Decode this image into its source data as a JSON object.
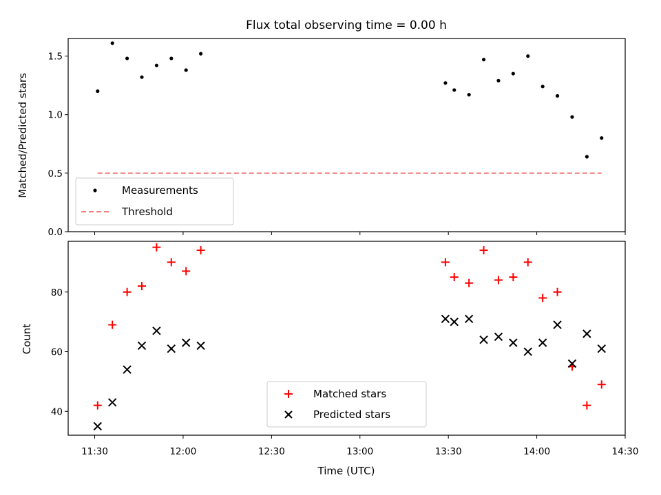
{
  "chart_data": [
    {
      "type": "scatter",
      "title": "Flux total observing time = 0.00 h",
      "xlabel": "",
      "ylabel": "Matched/Predicted stars",
      "xlim": [
        "11:21",
        "14:30"
      ],
      "ylim": [
        0.0,
        1.65
      ],
      "yticks": [
        0.0,
        0.5,
        1.0,
        1.5
      ],
      "ytick_labels": [
        "0.0",
        "0.5",
        "1.0",
        "1.5"
      ],
      "legend_position": "lower-left",
      "series": [
        {
          "name": "Measurements",
          "kind": "scatter",
          "marker": "dot",
          "color": "#000000",
          "x": [
            "11:31",
            "11:36",
            "11:41",
            "11:46",
            "11:51",
            "11:56",
            "12:01",
            "12:06",
            "13:29",
            "13:32",
            "13:37",
            "13:42",
            "13:47",
            "13:52",
            "13:57",
            "14:02",
            "14:07",
            "14:12",
            "14:17",
            "14:22"
          ],
          "y": [
            1.2,
            1.61,
            1.48,
            1.32,
            1.42,
            1.48,
            1.38,
            1.52,
            1.27,
            1.21,
            1.17,
            1.47,
            1.29,
            1.35,
            1.5,
            1.24,
            1.16,
            0.98,
            0.64,
            0.8
          ]
        },
        {
          "name": "Threshold",
          "kind": "line",
          "style": "dashed",
          "color": "#f08080",
          "x": [
            "11:31",
            "14:22"
          ],
          "y": [
            0.5,
            0.5
          ]
        }
      ]
    },
    {
      "type": "scatter",
      "title": "",
      "xlabel": "Time (UTC)",
      "ylabel": "Count",
      "xlim": [
        "11:21",
        "14:30"
      ],
      "ylim": [
        32,
        97
      ],
      "yticks": [
        40,
        60,
        80
      ],
      "ytick_labels": [
        "40",
        "60",
        "80"
      ],
      "xticks": [
        "11:30",
        "12:00",
        "12:30",
        "13:00",
        "13:30",
        "14:00",
        "14:30"
      ],
      "legend_position": "lower-center",
      "series": [
        {
          "name": "Matched stars",
          "kind": "scatter",
          "marker": "plus",
          "color": "#ff0000",
          "x": [
            "11:31",
            "11:36",
            "11:41",
            "11:46",
            "11:51",
            "11:56",
            "12:01",
            "12:06",
            "13:29",
            "13:32",
            "13:37",
            "13:42",
            "13:47",
            "13:52",
            "13:57",
            "14:02",
            "14:07",
            "14:12",
            "14:17",
            "14:22"
          ],
          "y": [
            42,
            69,
            80,
            82,
            95,
            90,
            87,
            94,
            90,
            85,
            83,
            94,
            84,
            85,
            90,
            78,
            80,
            55,
            42,
            49
          ]
        },
        {
          "name": "Predicted stars",
          "kind": "scatter",
          "marker": "x",
          "color": "#000000",
          "x": [
            "11:31",
            "11:36",
            "11:41",
            "11:46",
            "11:51",
            "11:56",
            "12:01",
            "12:06",
            "13:29",
            "13:32",
            "13:37",
            "13:42",
            "13:47",
            "13:52",
            "13:57",
            "14:02",
            "14:07",
            "14:12",
            "14:17",
            "14:22"
          ],
          "y": [
            35,
            43,
            54,
            62,
            67,
            61,
            63,
            62,
            71,
            70,
            71,
            64,
            65,
            63,
            60,
            63,
            69,
            56,
            66,
            61
          ]
        }
      ]
    }
  ]
}
